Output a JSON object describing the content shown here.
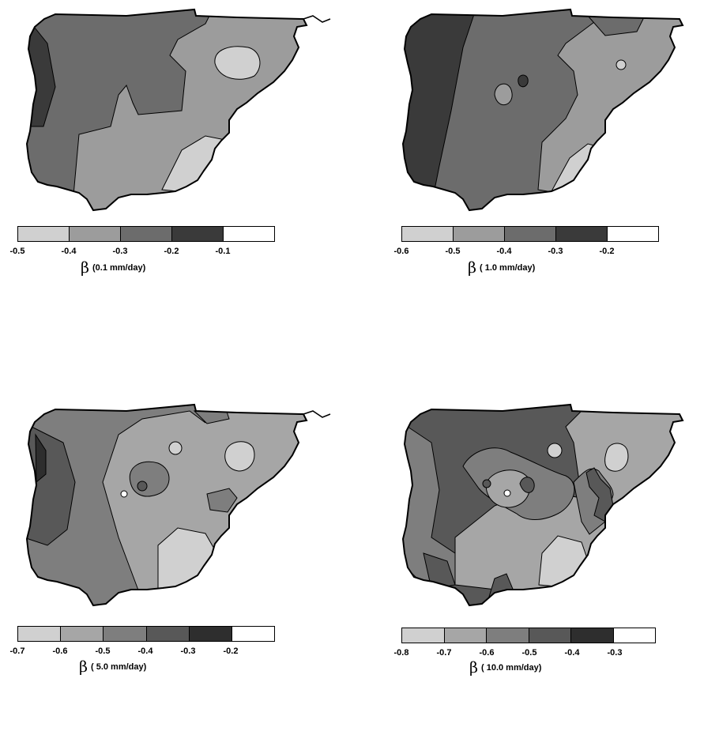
{
  "panels": [
    {
      "symbol": "β",
      "caption": "(0.1 mm/day)",
      "legend_ticks": [
        "-0.5",
        "-0.4",
        "-0.3",
        "-0.2",
        "-0.1"
      ],
      "legend_colors": [
        "#d0d0d0",
        "#9c9c9c",
        "#6c6c6c",
        "#3a3a3a",
        "#ffffff"
      ]
    },
    {
      "symbol": "β",
      "caption": "( 1.0 mm/day)",
      "legend_ticks": [
        "-0.6",
        "-0.5",
        "-0.4",
        "-0.3",
        "-0.2"
      ],
      "legend_colors": [
        "#d0d0d0",
        "#9c9c9c",
        "#6c6c6c",
        "#3a3a3a",
        "#ffffff"
      ]
    },
    {
      "symbol": "β",
      "caption": "( 5.0 mm/day)",
      "legend_ticks": [
        "-0.7",
        "-0.6",
        "-0.5",
        "-0.4",
        "-0.3",
        "-0.2"
      ],
      "legend_colors": [
        "#d0d0d0",
        "#a6a6a6",
        "#7e7e7e",
        "#585858",
        "#2e2e2e",
        "#ffffff"
      ]
    },
    {
      "symbol": "β",
      "caption": "( 10.0 mm/day)",
      "legend_ticks": [
        "-0.8",
        "-0.7",
        "-0.6",
        "-0.5",
        "-0.4",
        "-0.3"
      ],
      "legend_colors": [
        "#d0d0d0",
        "#a6a6a6",
        "#7e7e7e",
        "#585858",
        "#2e2e2e",
        "#ffffff"
      ]
    }
  ]
}
